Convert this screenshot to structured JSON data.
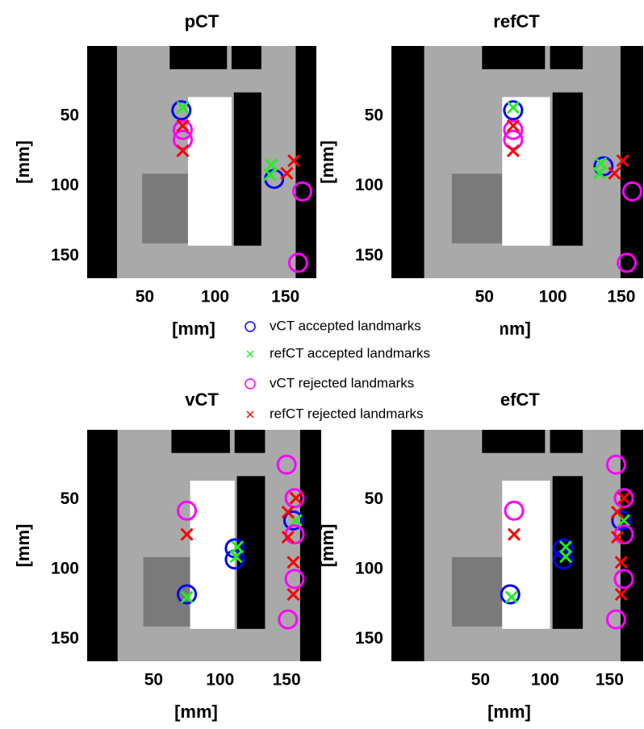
{
  "chart_data": [
    {
      "type": "scatter",
      "title": "pCT",
      "x_label": "[mm]",
      "y_label": "[mm]",
      "xlim": [
        9,
        172
      ],
      "ylim": [
        0,
        166
      ],
      "y_inverted": true,
      "xticks": [
        50,
        100,
        150
      ],
      "yticks": [
        50,
        100,
        150
      ],
      "series": [
        {
          "name": "vCT accepted landmarks",
          "color": "#0000ff",
          "marker": "o",
          "x": [
            76,
            142
          ],
          "y": [
            46,
            95
          ]
        },
        {
          "name": "refCT accepted landmarks",
          "color": "#22ee22",
          "marker": "x",
          "x": [
            77,
            140,
            139
          ],
          "y": [
            44,
            85,
            92
          ]
        },
        {
          "name": "vCT rejected landmarks",
          "color": "#ff00ff",
          "marker": "o",
          "x": [
            77,
            77,
            162,
            159
          ],
          "y": [
            60,
            67,
            104,
            155
          ]
        },
        {
          "name": "refCT rejected landmarks",
          "color": "#ff0000",
          "marker": "x",
          "x": [
            77,
            77,
            156,
            151
          ],
          "y": [
            57,
            75,
            82,
            91
          ]
        }
      ]
    },
    {
      "type": "scatter",
      "title": "refCT",
      "x_label": "[mm]",
      "y_label": "[mm]",
      "xlim": [
        -18,
        166
      ],
      "ylim": [
        0,
        166
      ],
      "y_inverted": true,
      "xticks": [
        50,
        100,
        150
      ],
      "yticks": [
        50,
        100,
        150
      ],
      "series": [
        {
          "name": "vCT accepted landmarks",
          "color": "#0000ff",
          "marker": "o",
          "x": [
            71,
            137
          ],
          "y": [
            46,
            86
          ]
        },
        {
          "name": "refCT accepted landmarks",
          "color": "#22ee22",
          "marker": "x",
          "x": [
            71,
            135,
            134
          ],
          "y": [
            44,
            84,
            91
          ]
        },
        {
          "name": "vCT rejected landmarks",
          "color": "#ff00ff",
          "marker": "o",
          "x": [
            71,
            71,
            158,
            154
          ],
          "y": [
            60,
            67,
            104,
            155
          ]
        },
        {
          "name": "refCT rejected landmarks",
          "color": "#ff0000",
          "marker": "x",
          "x": [
            71,
            71,
            151,
            145
          ],
          "y": [
            57,
            75,
            82,
            91
          ]
        }
      ]
    },
    {
      "type": "scatter",
      "title": "vCT",
      "x_label": "[mm]",
      "y_label": "[mm]",
      "xlim": [
        0,
        176
      ],
      "ylim": [
        0,
        166
      ],
      "y_inverted": true,
      "xticks": [
        50,
        100,
        150
      ],
      "yticks": [
        50,
        100,
        150
      ],
      "series": [
        {
          "name": "vCT accepted landmarks",
          "color": "#0000ff",
          "marker": "o",
          "x": [
            75,
            111,
            111,
            155
          ],
          "y": [
            118,
            85,
            93,
            65
          ]
        },
        {
          "name": "refCT accepted landmarks",
          "color": "#22ee22",
          "marker": "x",
          "x": [
            75,
            113,
            112,
            157
          ],
          "y": [
            120,
            84,
            91,
            65
          ]
        },
        {
          "name": "vCT rejected landmarks",
          "color": "#ff00ff",
          "marker": "o",
          "x": [
            75,
            150,
            156,
            156,
            156,
            151
          ],
          "y": [
            58,
            25,
            49,
            75,
            107,
            136
          ]
        },
        {
          "name": "refCT rejected landmarks",
          "color": "#ff0000",
          "marker": "x",
          "x": [
            75,
            157,
            151,
            151,
            155,
            155
          ],
          "y": [
            75,
            49,
            59,
            77,
            95,
            118
          ]
        }
      ]
    },
    {
      "type": "scatter",
      "title": "refCT",
      "x_label": "[mm]",
      "y_label": "[mm]",
      "xlim": [
        -19,
        176
      ],
      "ylim": [
        0,
        166
      ],
      "y_inverted": true,
      "xticks": [
        50,
        100,
        150
      ],
      "yticks": [
        50,
        100,
        150
      ],
      "series": [
        {
          "name": "vCT accepted landmarks",
          "color": "#0000ff",
          "marker": "o",
          "x": [
            73,
            114,
            114,
            159
          ],
          "y": [
            118,
            85,
            93,
            65
          ]
        },
        {
          "name": "refCT accepted landmarks",
          "color": "#22ee22",
          "marker": "x",
          "x": [
            74,
            116,
            116,
            161
          ],
          "y": [
            120,
            84,
            91,
            65
          ]
        },
        {
          "name": "vCT rejected landmarks",
          "color": "#ff00ff",
          "marker": "o",
          "x": [
            76,
            155,
            161,
            161,
            161,
            155
          ],
          "y": [
            58,
            25,
            49,
            75,
            107,
            136
          ]
        },
        {
          "name": "refCT rejected landmarks",
          "color": "#ff0000",
          "marker": "x",
          "x": [
            76,
            161,
            156,
            156,
            159,
            159
          ],
          "y": [
            75,
            49,
            59,
            77,
            95,
            118
          ]
        }
      ]
    }
  ]
}
